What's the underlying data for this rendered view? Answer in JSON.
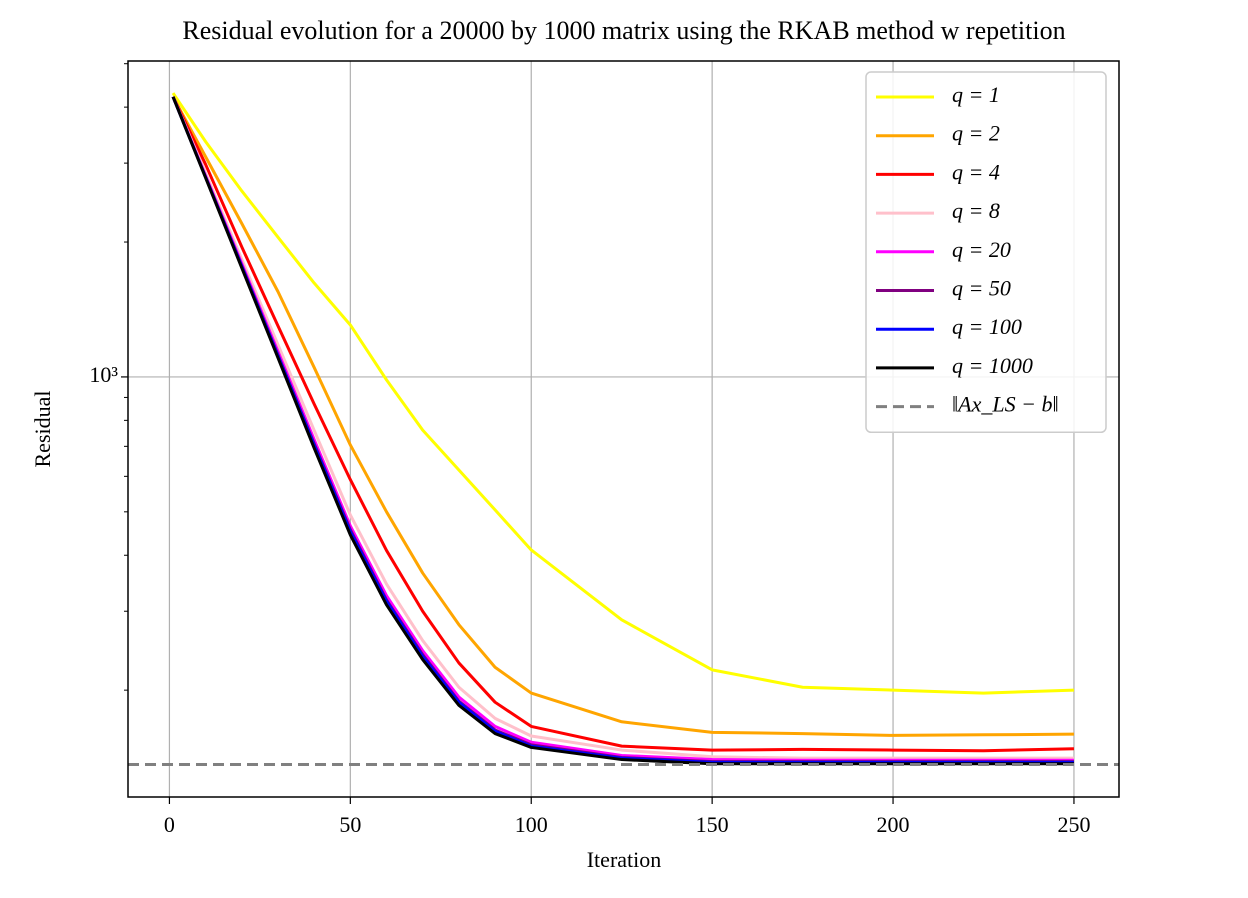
{
  "chart_data": {
    "type": "line",
    "title": "Residual evolution for a 20000 by 1000 matrix using the RKAB method w repetition",
    "xlabel": "Iteration",
    "ylabel": "Residual",
    "yscale": "log",
    "grid": true,
    "legend": "upper right",
    "xlim": [
      -11.45,
      262.45
    ],
    "ylim": [
      115.5,
      5070
    ],
    "xticks": [
      0,
      50,
      100,
      150,
      200,
      250
    ],
    "yticks": [
      {
        "value": 1000,
        "label": "10³"
      }
    ],
    "minor_yticks": [
      200,
      300,
      400,
      500,
      600,
      700,
      800,
      900,
      2000,
      3000,
      4000,
      5000
    ],
    "x": [
      1,
      10,
      20,
      30,
      40,
      50,
      60,
      70,
      80,
      90,
      100,
      125,
      150,
      175,
      200,
      225,
      250
    ],
    "series": [
      {
        "name": "q = 1",
        "color": "#ffff00",
        "values": [
          4300,
          3350,
          2600,
          2050,
          1620,
          1306,
          985,
          761,
          620,
          505,
          411,
          287,
          222,
          203,
          200,
          197,
          200
        ]
      },
      {
        "name": "q = 2",
        "color": "#ffa500",
        "values": [
          4217,
          3100,
          2200,
          1550,
          1050,
          705,
          500,
          365,
          280,
          225,
          197,
          170,
          161,
          160,
          158.5,
          159,
          159.5
        ]
      },
      {
        "name": "q = 4",
        "color": "#ff0000",
        "values": [
          4217,
          2980,
          1950,
          1300,
          870,
          590,
          410,
          300,
          230,
          188,
          166,
          150,
          147,
          147.5,
          147,
          146.5,
          148
        ]
      },
      {
        "name": "q = 8",
        "color": "#ffc0cb",
        "values": [
          4217,
          2850,
          1830,
          1180,
          760,
          492,
          345,
          258,
          203,
          173,
          158,
          147,
          142,
          141,
          141,
          141,
          141
        ]
      },
      {
        "name": "q = 20",
        "color": "#ff00ff",
        "values": [
          4217,
          2810,
          1790,
          1140,
          725,
          465,
          325,
          245,
          193,
          166,
          153,
          143,
          140,
          139.5,
          139.5,
          139.5,
          139.5
        ]
      },
      {
        "name": "q = 50",
        "color": "#800080",
        "values": [
          4217,
          2795,
          1770,
          1120,
          710,
          456,
          318,
          240,
          189,
          163,
          151,
          141.5,
          138.5,
          138.5,
          138.5,
          138.5,
          138.5
        ]
      },
      {
        "name": "q = 100",
        "color": "#0000ff",
        "values": [
          4217,
          2790,
          1765,
          1115,
          705,
          452,
          316,
          238,
          188,
          162,
          150,
          141,
          138,
          138,
          138,
          138,
          138
        ]
      },
      {
        "name": "q = 1000",
        "color": "#000000",
        "values": [
          4217,
          2781,
          1751,
          1103,
          694,
          444,
          310,
          234,
          185,
          160,
          149,
          140,
          137,
          137,
          137,
          137,
          137
        ]
      }
    ],
    "reference_line": {
      "name": "‖Ax_LS − b‖",
      "color": "#808080",
      "value": 136.5
    }
  }
}
